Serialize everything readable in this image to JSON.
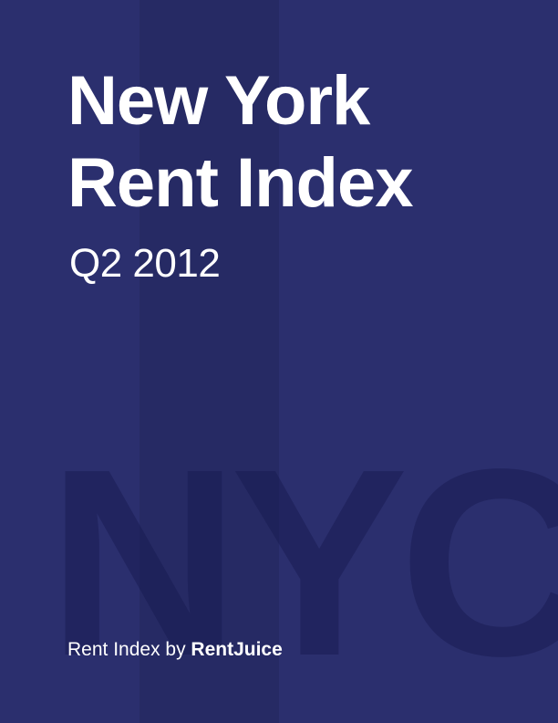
{
  "cover": {
    "title_line1": "New York",
    "title_line2": "Rent Index",
    "subtitle": "Q2 2012",
    "watermark": "NYC",
    "byline_prefix": "Rent Index by ",
    "byline_brand": "RentJuice"
  },
  "colors": {
    "background": "#2b2f6e",
    "stripe": "#262a64",
    "text": "#ffffff"
  }
}
